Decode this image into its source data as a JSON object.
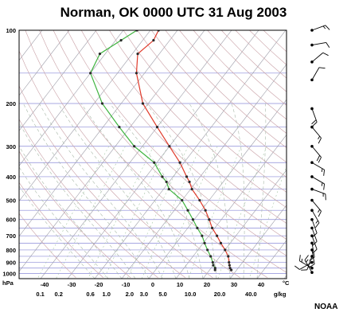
{
  "title": "Norman, OK 0000 UTC  31 Aug 2003",
  "credit": "NOAA",
  "pressure_unit": "hPa",
  "temp_unit": "°C",
  "mixing_unit": "g/kg",
  "colors": {
    "temperature": "#e03a2a",
    "dewpoint": "#3fb43f",
    "isobar": "#8a8ad8",
    "isotherm": "#9a9aa6",
    "dry_adiabat": "#c9a0a6",
    "moist_adiabat": "#a8b8a8",
    "mixing_ratio": "#a8c8a8",
    "wind": "#000000"
  },
  "chart_data": {
    "type": "line",
    "subtype": "skew-T log-P",
    "pressure_ticks": [
      100,
      200,
      300,
      400,
      500,
      600,
      700,
      800,
      900,
      1000
    ],
    "temp_ticks": [
      -40,
      -30,
      -20,
      -10,
      0,
      10,
      20,
      30,
      40
    ],
    "mixing_ratio_ticks": [
      "0.1",
      "0.2",
      "0.6",
      "1.0",
      "2.0",
      "3.0",
      "5.0",
      "10.0",
      "20.0",
      "40.0"
    ],
    "pressure_range": [
      100,
      1050
    ],
    "temp_range_at_surface": [
      -50,
      45
    ],
    "series": [
      {
        "points": [
          {
            "p": 967,
            "t": 28
          },
          {
            "p": 950,
            "t": 27
          },
          {
            "p": 925,
            "t": 26
          },
          {
            "p": 900,
            "t": 25
          },
          {
            "p": 850,
            "t": 23
          },
          {
            "p": 800,
            "t": 20
          },
          {
            "p": 750,
            "t": 16.5
          },
          {
            "p": 700,
            "t": 13
          },
          {
            "p": 650,
            "t": 9
          },
          {
            "p": 600,
            "t": 5.5
          },
          {
            "p": 550,
            "t": 1.5
          },
          {
            "p": 500,
            "t": -3.5
          },
          {
            "p": 450,
            "t": -9.5
          },
          {
            "p": 420,
            "t": -12.5
          },
          {
            "p": 400,
            "t": -15
          },
          {
            "p": 350,
            "t": -21.5
          },
          {
            "p": 300,
            "t": -30
          },
          {
            "p": 250,
            "t": -40
          },
          {
            "p": 200,
            "t": -52
          },
          {
            "p": 150,
            "t": -63
          },
          {
            "p": 125,
            "t": -68
          },
          {
            "p": 110,
            "t": -66
          },
          {
            "p": 100,
            "t": -67
          }
        ]
      },
      {
        "points": [
          {
            "p": 967,
            "t": 22
          },
          {
            "p": 950,
            "t": 21.5
          },
          {
            "p": 925,
            "t": 20
          },
          {
            "p": 900,
            "t": 19
          },
          {
            "p": 850,
            "t": 16.5
          },
          {
            "p": 800,
            "t": 13.5
          },
          {
            "p": 750,
            "t": 10.5
          },
          {
            "p": 700,
            "t": 7.5
          },
          {
            "p": 650,
            "t": 3.5
          },
          {
            "p": 600,
            "t": -0.5
          },
          {
            "p": 550,
            "t": -5
          },
          {
            "p": 500,
            "t": -10
          },
          {
            "p": 450,
            "t": -18
          },
          {
            "p": 420,
            "t": -21
          },
          {
            "p": 400,
            "t": -24
          },
          {
            "p": 350,
            "t": -31
          },
          {
            "p": 300,
            "t": -43
          },
          {
            "p": 250,
            "t": -54
          },
          {
            "p": 200,
            "t": -67
          },
          {
            "p": 150,
            "t": -80
          },
          {
            "p": 125,
            "t": -82
          },
          {
            "p": 110,
            "t": -78
          },
          {
            "p": 100,
            "t": -75
          }
        ]
      }
    ],
    "wind_barbs": [
      {
        "p": 100,
        "dir": 250,
        "kt": 15
      },
      {
        "p": 115,
        "dir": 260,
        "kt": 10
      },
      {
        "p": 135,
        "dir": 230,
        "kt": 10
      },
      {
        "p": 160,
        "dir": 210,
        "kt": 10
      },
      {
        "p": 210,
        "dir": 340,
        "kt": 20
      },
      {
        "p": 250,
        "dir": 320,
        "kt": 15
      },
      {
        "p": 300,
        "dir": 320,
        "kt": 20
      },
      {
        "p": 350,
        "dir": 300,
        "kt": 15
      },
      {
        "p": 400,
        "dir": 300,
        "kt": 15
      },
      {
        "p": 450,
        "dir": 290,
        "kt": 15
      },
      {
        "p": 500,
        "dir": 320,
        "kt": 15
      },
      {
        "p": 550,
        "dir": 330,
        "kt": 15
      },
      {
        "p": 600,
        "dir": 340,
        "kt": 10
      },
      {
        "p": 650,
        "dir": 340,
        "kt": 10
      },
      {
        "p": 700,
        "dir": 340,
        "kt": 10
      },
      {
        "p": 750,
        "dir": 350,
        "kt": 10
      },
      {
        "p": 800,
        "dir": 350,
        "kt": 10
      },
      {
        "p": 850,
        "dir": 20,
        "kt": 10
      },
      {
        "p": 900,
        "dir": 60,
        "kt": 10
      },
      {
        "p": 950,
        "dir": 120,
        "kt": 15
      },
      {
        "p": 990,
        "dir": 150,
        "kt": 15
      }
    ]
  }
}
